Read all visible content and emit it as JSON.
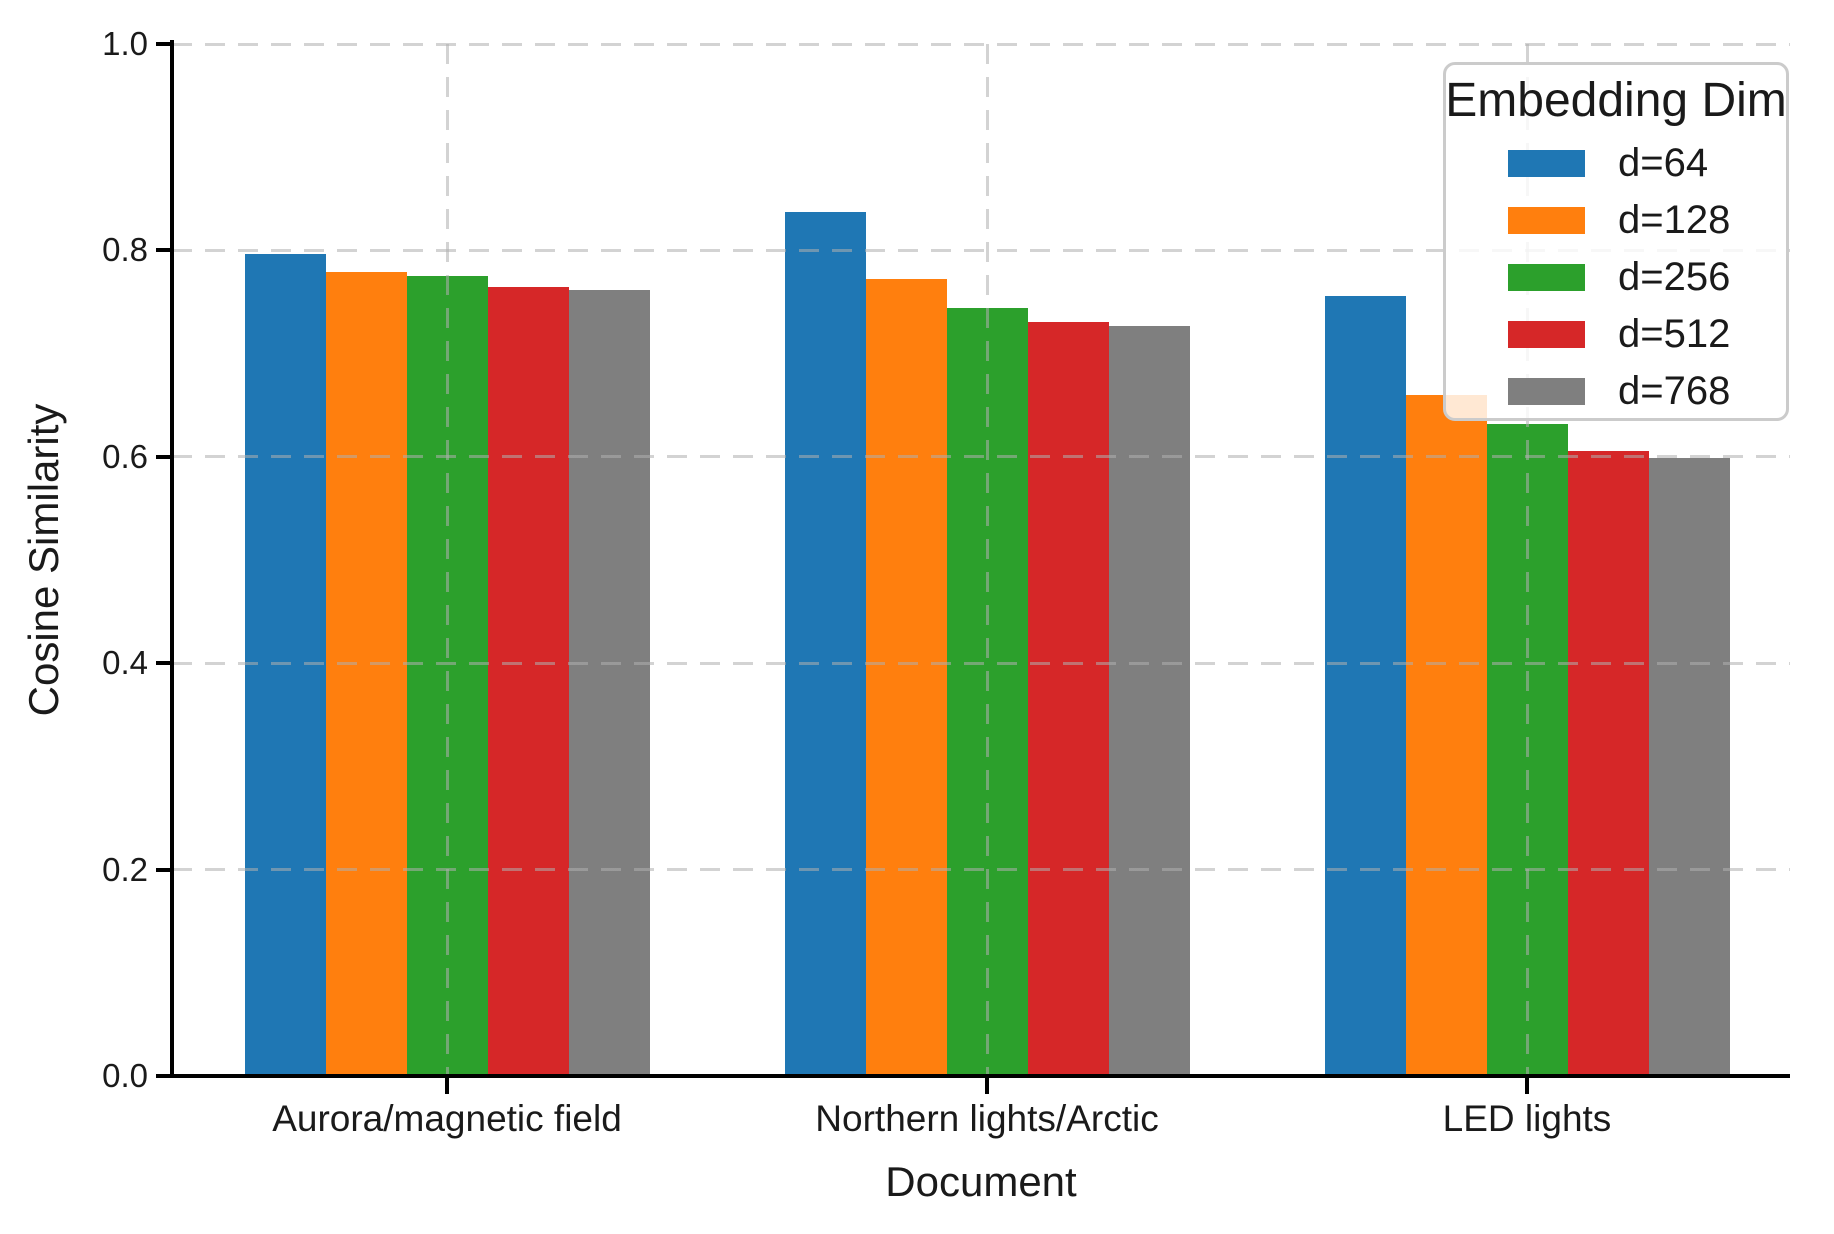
{
  "chart_data": {
    "type": "bar",
    "title": "",
    "xlabel": "Document",
    "ylabel": "Cosine Similarity",
    "categories": [
      "Aurora/magnetic field",
      "Northern lights/Arctic",
      "LED lights"
    ],
    "series": [
      {
        "name": "d=64",
        "color": "#1f77b4",
        "values": [
          0.797,
          0.837,
          0.756
        ]
      },
      {
        "name": "d=128",
        "color": "#ff7f0e",
        "values": [
          0.779,
          0.772,
          0.66
        ]
      },
      {
        "name": "d=256",
        "color": "#2ca02c",
        "values": [
          0.775,
          0.744,
          0.632
        ]
      },
      {
        "name": "d=512",
        "color": "#d62728",
        "values": [
          0.765,
          0.731,
          0.606
        ]
      },
      {
        "name": "d=768",
        "color": "#7f7f7f",
        "values": [
          0.762,
          0.727,
          0.599
        ]
      }
    ],
    "ylim": [
      0.0,
      1.0
    ],
    "yticks": [
      0.0,
      0.2,
      0.4,
      0.6,
      0.8,
      1.0
    ],
    "ytick_labels": [
      "0.0",
      "0.2",
      "0.4",
      "0.6",
      "0.8",
      "1.0"
    ],
    "grid": "dashed grey, horizontal at yticks and vertical at category centers, drawn above bars",
    "legend": {
      "title": "Embedding Dim",
      "position": "upper right",
      "entries": [
        "d=64",
        "d=128",
        "d=256",
        "d=512",
        "d=768"
      ]
    }
  }
}
